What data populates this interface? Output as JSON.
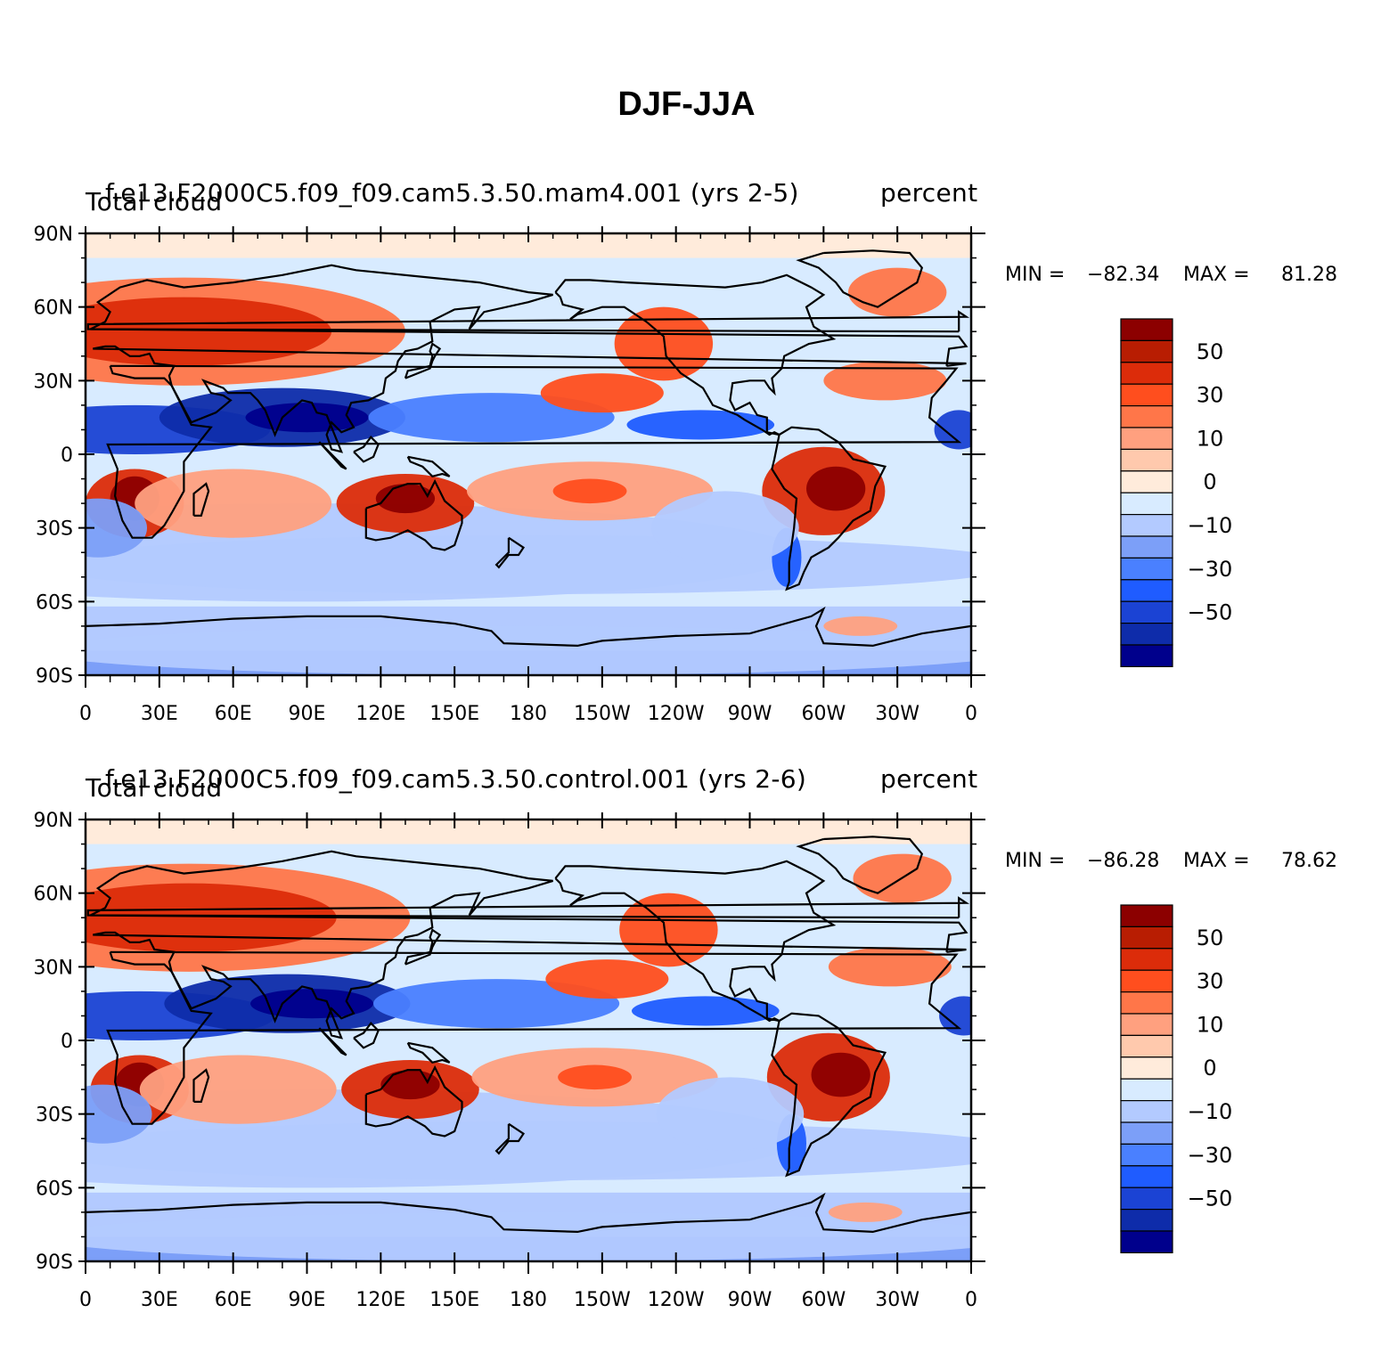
{
  "title": "DJF-JJA",
  "colors": {
    "levels": [
      "#00008c",
      "#0e2caa",
      "#1b43d4",
      "#1f5cff",
      "#4a80ff",
      "#7c9ff8",
      "#b3caff",
      "#d8ebff",
      "#ffebdb",
      "#ffc9ad",
      "#ffa07f",
      "#ff7649",
      "#ff4e1e",
      "#dc2c0a",
      "#b81d02",
      "#8c0000"
    ],
    "coast": "#000000"
  },
  "colorbar": {
    "labels": [
      "50",
      "30",
      "10",
      "0",
      "−10",
      "−30",
      "−50"
    ]
  },
  "axes": {
    "lat_labels": [
      "90N",
      "60N",
      "30N",
      "0",
      "30S",
      "60S",
      "90S"
    ],
    "lon_labels": [
      "0",
      "30E",
      "60E",
      "90E",
      "120E",
      "150E",
      "180",
      "150W",
      "120W",
      "90W",
      "60W",
      "30W",
      "0"
    ]
  },
  "panels": [
    {
      "left_title": "Total cloud",
      "center_title": "f.e13.F2000C5.f09_f09.cam5.3.50.mam4.001  (yrs 2-5)",
      "right_title": "percent",
      "min_label": "MIN = ",
      "min_value": "−82.34",
      "max_label": "MAX = ",
      "max_value": "81.28"
    },
    {
      "left_title": "Total cloud",
      "center_title": "f.e13.F2000C5.f09_f09.cam5.3.50.control.001  (yrs 2-6)",
      "right_title": "percent",
      "min_label": "MIN = ",
      "min_value": "−86.28",
      "max_label": "MAX = ",
      "max_value": "78.62"
    }
  ]
}
